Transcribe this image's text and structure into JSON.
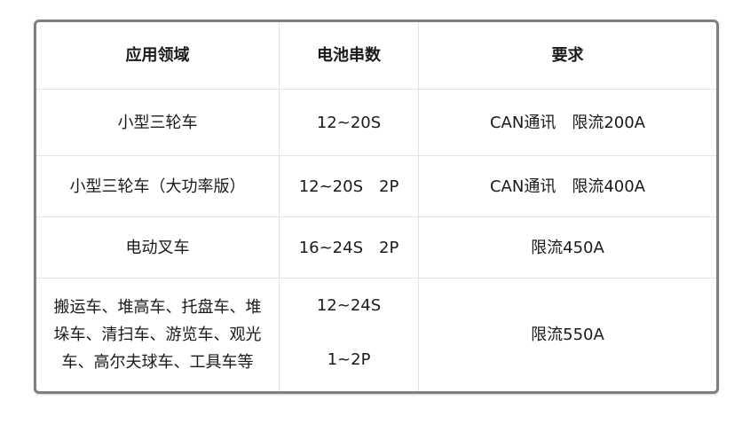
{
  "headers": [
    "应用领域",
    "电池串数",
    "要求"
  ],
  "rows": [
    {
      "application": "小型三轮车",
      "cells": "12~20S",
      "requirement": "CAN通讯　限流200A"
    },
    {
      "application": "小型三轮车（大功率版）",
      "cells": "12~20S　2P",
      "requirement": "CAN通讯　限流400A"
    },
    {
      "application": "电动叉车",
      "cells": "16~24S　2P",
      "requirement": "限流450A"
    },
    {
      "application_lines": [
        "搬运车、堆高车、托盘车、堆",
        "垛车、清扫车、游览车、观光",
        "车、高尔夫球车、工具车等"
      ],
      "cells_lines": [
        "12~24S",
        "1~2P"
      ],
      "requirement": "限流550A"
    }
  ]
}
